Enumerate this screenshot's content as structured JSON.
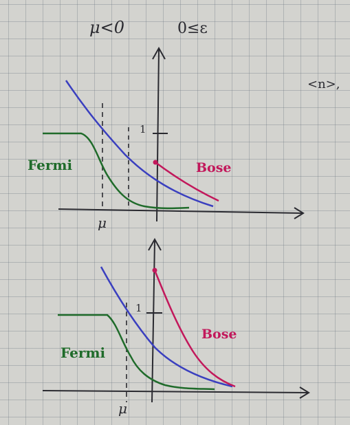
{
  "header": {
    "case_left": "μ<0",
    "case_right": "0≤ε",
    "margin_note": "<n>,"
  },
  "top_plot": {
    "tick_one": "1",
    "fermi_label": "Fermi",
    "bose_label": "Bose",
    "mu_label": "μ"
  },
  "bottom_plot": {
    "tick_one": "1",
    "fermi_label": "Fermi",
    "bose_label": "Bose",
    "mu_label": "μ"
  },
  "colors": {
    "ink": "#2a2a30",
    "fermi": "#1f6b2a",
    "bose": "#c2185b",
    "boltzmann": "#3a3fbf"
  }
}
